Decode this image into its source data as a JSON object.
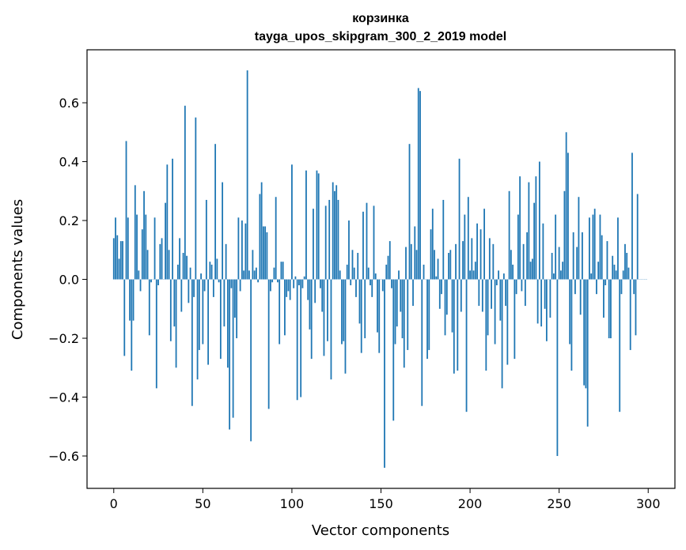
{
  "chart_data": {
    "type": "bar",
    "title": "корзинка",
    "subtitle": "tayga_upos_skipgram_300_2_2019 model",
    "xlabel": "Vector components",
    "ylabel": "Components values",
    "xlim": [
      -15,
      315
    ],
    "ylim": [
      -0.71,
      0.78
    ],
    "xticks": [
      0,
      50,
      100,
      150,
      200,
      250,
      300
    ],
    "xtick_labels": [
      "0",
      "50",
      "100",
      "150",
      "200",
      "250",
      "300"
    ],
    "yticks": [
      -0.6,
      -0.4,
      -0.2,
      0.0,
      0.2,
      0.4,
      0.6
    ],
    "ytick_labels": [
      "−0.6",
      "−0.4",
      "−0.2",
      "0.0",
      "0.2",
      "0.4",
      "0.6"
    ],
    "grid": false,
    "bar_color": "#1f77b4",
    "x": [
      0,
      1,
      2,
      3,
      4,
      5,
      6,
      7,
      8,
      9,
      10,
      11,
      12,
      13,
      14,
      15,
      16,
      17,
      18,
      19,
      20,
      21,
      22,
      23,
      24,
      25,
      26,
      27,
      28,
      29,
      30,
      31,
      32,
      33,
      34,
      35,
      36,
      37,
      38,
      39,
      40,
      41,
      42,
      43,
      44,
      45,
      46,
      47,
      48,
      49,
      50,
      51,
      52,
      53,
      54,
      55,
      56,
      57,
      58,
      59,
      60,
      61,
      62,
      63,
      64,
      65,
      66,
      67,
      68,
      69,
      70,
      71,
      72,
      73,
      74,
      75,
      76,
      77,
      78,
      79,
      80,
      81,
      82,
      83,
      84,
      85,
      86,
      87,
      88,
      89,
      90,
      91,
      92,
      93,
      94,
      95,
      96,
      97,
      98,
      99,
      100,
      101,
      102,
      103,
      104,
      105,
      106,
      107,
      108,
      109,
      110,
      111,
      112,
      113,
      114,
      115,
      116,
      117,
      118,
      119,
      120,
      121,
      122,
      123,
      124,
      125,
      126,
      127,
      128,
      129,
      130,
      131,
      132,
      133,
      134,
      135,
      136,
      137,
      138,
      139,
      140,
      141,
      142,
      143,
      144,
      145,
      146,
      147,
      148,
      149,
      150,
      151,
      152,
      153,
      154,
      155,
      156,
      157,
      158,
      159,
      160,
      161,
      162,
      163,
      164,
      165,
      166,
      167,
      168,
      169,
      170,
      171,
      172,
      173,
      174,
      175,
      176,
      177,
      178,
      179,
      180,
      181,
      182,
      183,
      184,
      185,
      186,
      187,
      188,
      189,
      190,
      191,
      192,
      193,
      194,
      195,
      196,
      197,
      198,
      199,
      200,
      201,
      202,
      203,
      204,
      205,
      206,
      207,
      208,
      209,
      210,
      211,
      212,
      213,
      214,
      215,
      216,
      217,
      218,
      219,
      220,
      221,
      222,
      223,
      224,
      225,
      226,
      227,
      228,
      229,
      230,
      231,
      232,
      233,
      234,
      235,
      236,
      237,
      238,
      239,
      240,
      241,
      242,
      243,
      244,
      245,
      246,
      247,
      248,
      249,
      250,
      251,
      252,
      253,
      254,
      255,
      256,
      257,
      258,
      259,
      260,
      261,
      262,
      263,
      264,
      265,
      266,
      267,
      268,
      269,
      270,
      271,
      272,
      273,
      274,
      275,
      276,
      277,
      278,
      279,
      280,
      281,
      282,
      283,
      284,
      285,
      286,
      287,
      288,
      289,
      290,
      291,
      292,
      293,
      294,
      295,
      296,
      297,
      298,
      299
    ],
    "values": [
      0.14,
      0.21,
      0.15,
      0.07,
      0.13,
      0.13,
      -0.26,
      0.47,
      0.21,
      -0.14,
      -0.31,
      -0.14,
      0.32,
      0.22,
      0.03,
      -0.04,
      0.17,
      0.3,
      0.22,
      0.1,
      -0.19,
      -0.01,
      0.0,
      0.21,
      -0.37,
      -0.02,
      0.12,
      0.14,
      0.0,
      0.26,
      0.39,
      0.1,
      -0.21,
      0.41,
      -0.16,
      -0.3,
      0.05,
      0.14,
      -0.11,
      0.09,
      0.59,
      0.08,
      -0.08,
      0.04,
      -0.43,
      -0.06,
      0.55,
      -0.34,
      -0.24,
      0.02,
      -0.22,
      -0.04,
      0.27,
      -0.29,
      0.06,
      0.05,
      -0.06,
      0.46,
      0.07,
      -0.01,
      -0.27,
      0.33,
      -0.16,
      0.12,
      -0.3,
      -0.51,
      -0.03,
      -0.47,
      -0.13,
      -0.2,
      0.21,
      -0.04,
      0.2,
      0.03,
      0.19,
      0.71,
      0.03,
      -0.55,
      0.1,
      0.03,
      0.04,
      -0.01,
      0.29,
      0.33,
      0.18,
      0.18,
      0.16,
      -0.44,
      -0.04,
      -0.01,
      0.04,
      0.28,
      -0.01,
      -0.22,
      0.06,
      0.06,
      -0.19,
      -0.06,
      -0.04,
      -0.07,
      0.39,
      -0.03,
      0.01,
      -0.41,
      -0.02,
      -0.4,
      -0.03,
      0.01,
      0.37,
      -0.07,
      -0.17,
      -0.27,
      0.24,
      -0.08,
      0.37,
      0.36,
      -0.03,
      -0.11,
      -0.26,
      0.25,
      -0.21,
      0.27,
      -0.34,
      0.33,
      0.3,
      0.32,
      0.27,
      0.03,
      -0.22,
      -0.21,
      -0.32,
      0.05,
      0.2,
      -0.02,
      0.1,
      0.04,
      -0.06,
      0.09,
      -0.15,
      -0.25,
      0.23,
      -0.2,
      0.26,
      0.04,
      -0.02,
      -0.06,
      0.25,
      0.02,
      -0.18,
      -0.25,
      0.0,
      -0.04,
      -0.64,
      0.05,
      0.08,
      0.13,
      -0.03,
      -0.48,
      -0.22,
      -0.16,
      0.03,
      -0.11,
      -0.2,
      -0.3,
      0.11,
      -0.24,
      0.46,
      0.12,
      -0.09,
      0.18,
      0.1,
      0.65,
      0.64,
      -0.43,
      0.05,
      0.0,
      -0.27,
      -0.24,
      0.17,
      0.24,
      0.1,
      0.01,
      0.07,
      -0.1,
      -0.05,
      0.27,
      -0.19,
      -0.12,
      0.09,
      0.1,
      -0.18,
      -0.32,
      0.12,
      -0.31,
      0.41,
      -0.11,
      0.13,
      0.22,
      -0.45,
      0.28,
      0.03,
      0.14,
      0.03,
      0.06,
      0.19,
      -0.09,
      0.17,
      -0.11,
      0.24,
      -0.31,
      -0.19,
      0.14,
      -0.1,
      0.12,
      -0.22,
      -0.02,
      0.03,
      -0.14,
      -0.37,
      0.02,
      -0.09,
      -0.29,
      0.3,
      0.1,
      0.05,
      -0.27,
      -0.05,
      0.22,
      0.35,
      -0.04,
      0.12,
      -0.09,
      0.16,
      0.33,
      0.06,
      0.07,
      0.26,
      0.35,
      -0.15,
      0.4,
      -0.16,
      0.19,
      -0.1,
      -0.21,
      0.0,
      -0.13,
      0.09,
      0.02,
      0.22,
      -0.6,
      0.11,
      0.03,
      0.06,
      0.3,
      0.5,
      0.43,
      -0.22,
      -0.31,
      0.16,
      -0.05,
      0.11,
      0.28,
      -0.12,
      0.16,
      -0.36,
      -0.37,
      -0.5,
      0.21,
      0.02,
      0.22,
      0.24,
      -0.05,
      0.06,
      0.22,
      0.15,
      -0.13,
      -0.02,
      0.13,
      -0.2,
      -0.2,
      0.08,
      0.05,
      0.03,
      0.21,
      -0.45,
      -0.05,
      0.03,
      0.12,
      0.09,
      0.04,
      -0.24,
      0.43,
      -0.05,
      -0.19,
      0.29,
      0.0,
      0.0,
      0.0,
      0.0,
      0.0
    ]
  }
}
